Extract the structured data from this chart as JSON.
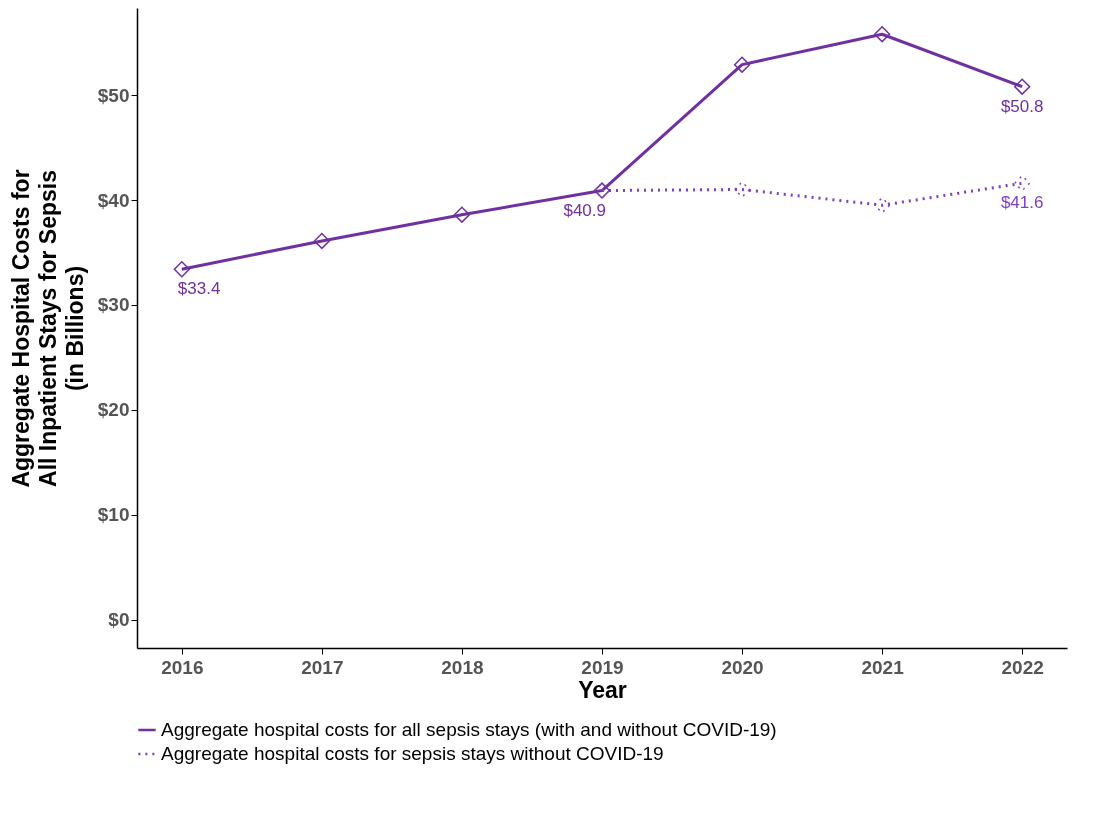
{
  "chart_data": {
    "type": "line",
    "xlabel": "Year",
    "ylabel": "Aggregate Hospital Costs for\nAll Inpatient Stays for Sepsis\n(in Billions)",
    "categories": [
      "2016",
      "2017",
      "2018",
      "2019",
      "2020",
      "2021",
      "2022"
    ],
    "series": [
      {
        "name": "Aggregate hospital costs for all sepsis stays (with and without COVID-19)",
        "color": "#7030a0",
        "line_style": "solid",
        "values": [
          33.4,
          36.1,
          38.6,
          40.9,
          52.9,
          55.8,
          50.8
        ],
        "value_labels": [
          "$33.4",
          null,
          null,
          "$40.9",
          null,
          null,
          "$50.8"
        ]
      },
      {
        "name": "Aggregate hospital costs for sepsis stays without COVID-19",
        "color": "#7f3fbf",
        "line_style": "dotted",
        "values": [
          null,
          null,
          null,
          40.9,
          41.0,
          39.5,
          41.6
        ],
        "value_labels": [
          null,
          null,
          null,
          null,
          null,
          null,
          "$41.6"
        ]
      }
    ],
    "ylim": [
      -2.7,
      58.3
    ],
    "yticks": [
      {
        "value": 0,
        "label": "$0"
      },
      {
        "value": 10,
        "label": "$10"
      },
      {
        "value": 20,
        "label": "$20"
      },
      {
        "value": 30,
        "label": "$30"
      },
      {
        "value": 40,
        "label": "$40"
      },
      {
        "value": 50,
        "label": "$50"
      }
    ],
    "marker": "diamond",
    "grid": false,
    "legend": "bottom"
  }
}
